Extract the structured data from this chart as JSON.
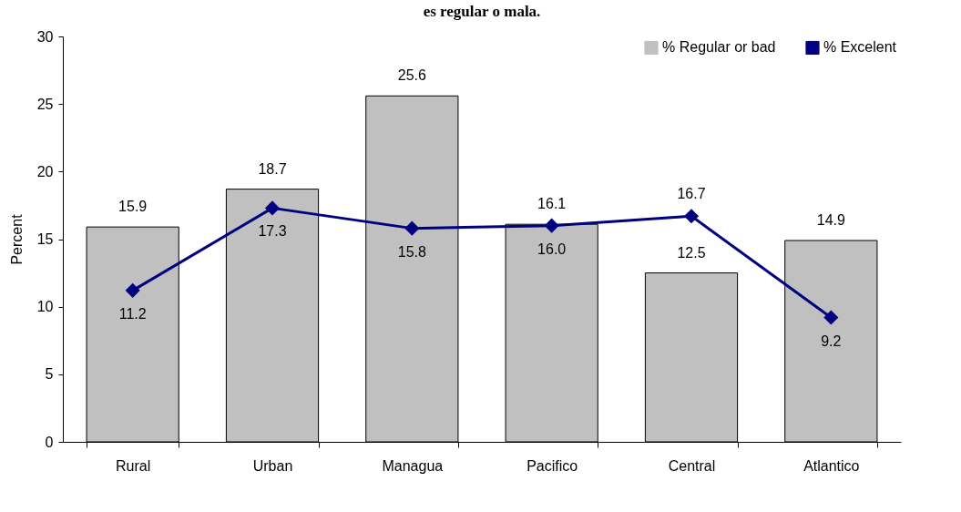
{
  "chart_data": {
    "type": "bar",
    "title": "es regular o mala.",
    "ylabel": "Percent",
    "categories": [
      "Rural",
      "Urban",
      "Managua",
      "Pacifico",
      "Central",
      "Atlantico"
    ],
    "series": [
      {
        "name": "% Regular or bad",
        "color": "#c0c0c0",
        "values": [
          15.9,
          18.7,
          25.6,
          16.1,
          12.5,
          14.9
        ]
      },
      {
        "name": "% Excelent",
        "type": "line",
        "color": "#000080",
        "marker": "diamond",
        "values": [
          11.2,
          17.3,
          15.8,
          16.0,
          16.7,
          9.2
        ],
        "value_labels": [
          "11.2",
          "17.3",
          "15.8",
          "16.0",
          "16.7",
          "9.2"
        ]
      }
    ],
    "ylim": [
      0,
      30
    ],
    "yticks": [
      0,
      5,
      10,
      15,
      20,
      25,
      30
    ],
    "data_labels": true,
    "grid": false,
    "legend": "top right"
  }
}
